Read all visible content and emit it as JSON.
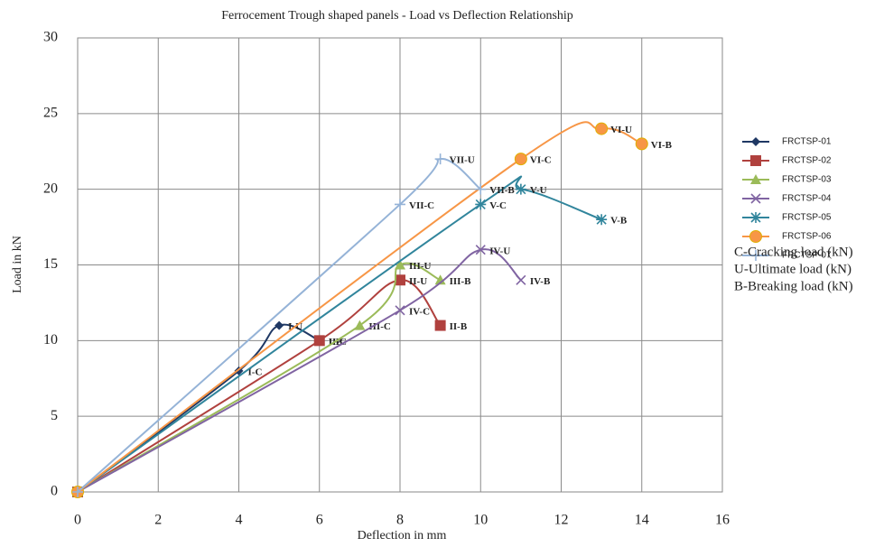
{
  "chart_data": {
    "type": "scatter-smooth",
    "title": "Ferrocement Trough shaped panels  - Load vs Deflection Relationship",
    "xlabel": "Deflection in mm",
    "ylabel": "Load in kN",
    "xlim": [
      0,
      16
    ],
    "xticks": [
      0,
      2,
      4,
      6,
      8,
      10,
      12,
      14,
      16
    ],
    "ylim": [
      0,
      30
    ],
    "yticks": [
      0,
      5,
      10,
      15,
      20,
      25,
      30
    ],
    "grid": true,
    "legend": "right",
    "series": [
      {
        "name": "FRCTSP-01",
        "color": "#1f3864",
        "marker": "diamond",
        "x": [
          0,
          4,
          5,
          6
        ],
        "values": [
          0,
          8,
          11,
          10
        ],
        "point_labels": [
          null,
          "I-C",
          "I-U",
          "I-B"
        ]
      },
      {
        "name": "FRCTSP-02",
        "color": "#b0413e",
        "marker": "square",
        "x": [
          0,
          6,
          8,
          9
        ],
        "values": [
          0,
          10,
          14,
          11
        ],
        "point_labels": [
          null,
          "II-C",
          "II-U",
          "II-B"
        ]
      },
      {
        "name": "FRCTSP-03",
        "color": "#9bbb59",
        "marker": "triangle",
        "x": [
          0,
          7,
          8,
          9
        ],
        "values": [
          0,
          11,
          15,
          14
        ],
        "point_labels": [
          null,
          "III-C",
          "III-U",
          "III-B"
        ]
      },
      {
        "name": "FRCTSP-04",
        "color": "#8064a2",
        "marker": "x",
        "x": [
          0,
          8,
          10,
          11
        ],
        "values": [
          0,
          12,
          16,
          14
        ],
        "point_labels": [
          null,
          "IV-C",
          "IV-U",
          "IV-B"
        ]
      },
      {
        "name": "FRCTSP-05",
        "color": "#31859c",
        "marker": "asterisk",
        "x": [
          0,
          10,
          11,
          13
        ],
        "values": [
          0,
          19,
          20,
          18
        ],
        "point_labels": [
          null,
          "V-C",
          "V-U",
          "V-B"
        ]
      },
      {
        "name": "FRCTSP-06",
        "color": "#f79646",
        "marker": "circle",
        "x": [
          0,
          11,
          13,
          14
        ],
        "values": [
          0,
          22,
          24,
          23
        ],
        "point_labels": [
          null,
          "VI-C",
          "VI-U",
          "VI-B"
        ]
      },
      {
        "name": "FRCTSP-07",
        "color": "#95b3d7",
        "marker": "plus",
        "x": [
          0,
          8,
          9,
          10
        ],
        "values": [
          0,
          19,
          22,
          20
        ],
        "point_labels": [
          null,
          "VII-C",
          "VII-U",
          "VII-B"
        ]
      }
    ],
    "notes": [
      "C-Cracking load  (kN)",
      "U-Ultimate load  (kN)",
      "B-Breaking load  (kN)"
    ]
  }
}
